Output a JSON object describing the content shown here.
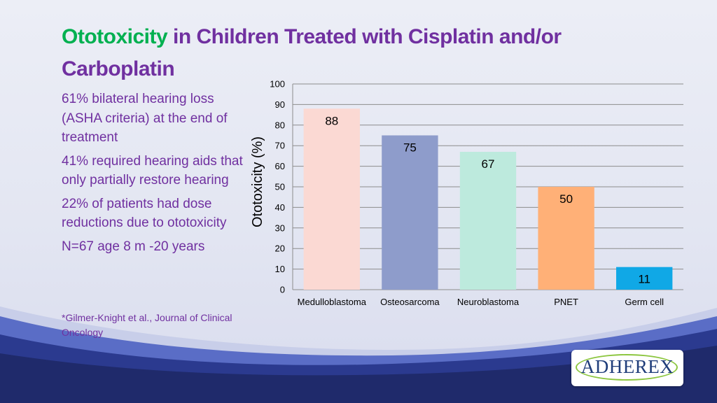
{
  "slide": {
    "title_highlight": "Ototoxicity",
    "title_rest": " in Children Treated with Cisplatin and/or Carboplatin",
    "bullets": [
      "61% bilateral hearing loss (ASHA criteria) at the end of treatment",
      "41% required hearing aids that only partially restore hearing",
      "22% of patients had dose reductions due to ototoxicity",
      "N=67 age 8 m -20 years"
    ],
    "citation": "*Gilmer-Knight et al., Journal of Clinical Oncology",
    "logo_text": "ADHEREX"
  },
  "colors": {
    "title": "#7030a0",
    "title_highlight": "#00b050",
    "band_dark": "#1f2a6b",
    "band_mid": "#3c4db0"
  },
  "chart_data": {
    "type": "bar",
    "categories": [
      "Medulloblastoma",
      "Osteosarcoma",
      "Neuroblastoma",
      "PNET",
      "Germ cell"
    ],
    "values": [
      88,
      75,
      67,
      50,
      11
    ],
    "data_labels": [
      "88",
      "75",
      "67",
      "50",
      "11"
    ],
    "colors": [
      "#fbd9d3",
      "#8e9ccb",
      "#bdeadd",
      "#ffb077",
      "#10a8e6"
    ],
    "title": "",
    "xlabel": "",
    "ylabel": "Ototoxicity (%)",
    "ylim": [
      0,
      100
    ],
    "yticks": [
      "0",
      "10",
      "20",
      "30",
      "40",
      "50",
      "60",
      "70",
      "80",
      "90",
      "100"
    ],
    "grid": true,
    "legend": "none"
  }
}
